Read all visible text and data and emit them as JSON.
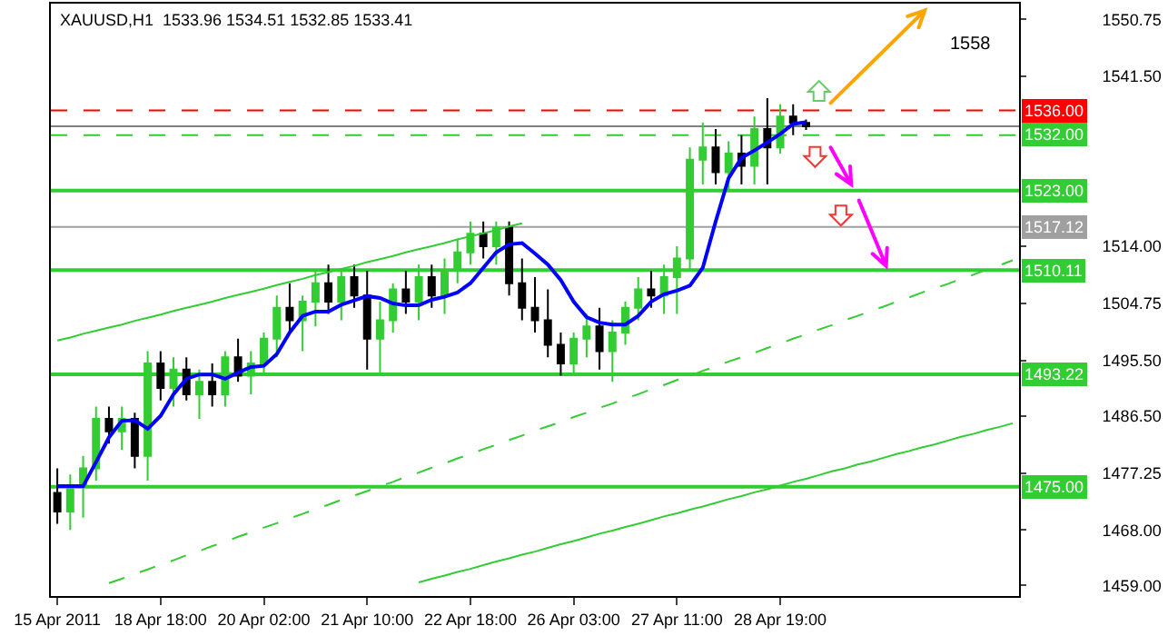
{
  "chart_data": {
    "type": "candlestick",
    "title": "XAUUSD,H1  1533.96 1534.51 1532.85 1533.41",
    "categories": [
      "15 Apr 2011",
      null,
      null,
      null,
      null,
      null,
      null,
      null,
      "18 Apr 18:00",
      null,
      null,
      null,
      null,
      null,
      null,
      null,
      "20 Apr 02:00",
      null,
      null,
      null,
      null,
      null,
      null,
      null,
      "21 Apr 10:00",
      null,
      null,
      null,
      null,
      null,
      null,
      null,
      "22 Apr 18:00",
      null,
      null,
      null,
      null,
      null,
      null,
      null,
      "26 Apr 03:00",
      null,
      null,
      null,
      null,
      null,
      null,
      null,
      "27 Apr 11:00",
      null,
      null,
      null,
      null,
      null,
      null,
      null,
      "28 Apr 19:00",
      null,
      null,
      null,
      null,
      null,
      null,
      null,
      null,
      null,
      null,
      null,
      null,
      null,
      null,
      null,
      null,
      null,
      null
    ],
    "ohlc": [
      [
        1474,
        1478,
        1469,
        1471
      ],
      [
        1471,
        1477,
        1468,
        1475
      ],
      [
        1475,
        1480,
        1470,
        1478
      ],
      [
        1478,
        1488,
        1476,
        1486
      ],
      [
        1486,
        1488,
        1482,
        1484
      ],
      [
        1484,
        1488,
        1481,
        1486
      ],
      [
        1486,
        1487,
        1478,
        1480
      ],
      [
        1480,
        1497,
        1476,
        1495
      ],
      [
        1495,
        1497,
        1489,
        1491
      ],
      [
        1491,
        1496,
        1488,
        1494
      ],
      [
        1494,
        1496,
        1489,
        1490
      ],
      [
        1490,
        1494,
        1486,
        1492
      ],
      [
        1492,
        1495,
        1488,
        1490
      ],
      [
        1490,
        1497,
        1488,
        1496
      ],
      [
        1496,
        1499,
        1492,
        1493
      ],
      [
        1493,
        1497,
        1490,
        1495
      ],
      [
        1495,
        1500,
        1493,
        1499
      ],
      [
        1499,
        1506,
        1496,
        1504
      ],
      [
        1504,
        1508,
        1500,
        1502
      ],
      [
        1502,
        1506,
        1497,
        1505
      ],
      [
        1505,
        1510,
        1501,
        1508
      ],
      [
        1508,
        1511,
        1503,
        1505
      ],
      [
        1505,
        1510,
        1502,
        1509
      ],
      [
        1509,
        1511,
        1504,
        1506
      ],
      [
        1506,
        1510,
        1494,
        1499
      ],
      [
        1499,
        1505,
        1493,
        1502
      ],
      [
        1502,
        1508,
        1500,
        1507
      ],
      [
        1507,
        1510,
        1503,
        1505
      ],
      [
        1505,
        1511,
        1502,
        1509
      ],
      [
        1509,
        1511,
        1504,
        1506
      ],
      [
        1506,
        1512,
        1503,
        1510
      ],
      [
        1510,
        1515,
        1508,
        1513
      ],
      [
        1513,
        1518,
        1511,
        1516
      ],
      [
        1516,
        1518,
        1512,
        1514
      ],
      [
        1514,
        1518,
        1511,
        1517
      ],
      [
        1517,
        1518,
        1506,
        1508
      ],
      [
        1508,
        1512,
        1502,
        1504
      ],
      [
        1504,
        1509,
        1500,
        1502
      ],
      [
        1502,
        1507,
        1496,
        1498
      ],
      [
        1498,
        1500,
        1493,
        1495
      ],
      [
        1495,
        1500,
        1493,
        1499
      ],
      [
        1499,
        1503,
        1496,
        1501
      ],
      [
        1501,
        1504,
        1494,
        1497
      ],
      [
        1497,
        1502,
        1492,
        1500
      ],
      [
        1500,
        1505,
        1498,
        1504
      ],
      [
        1504,
        1509,
        1502,
        1507
      ],
      [
        1507,
        1510,
        1504,
        1506
      ],
      [
        1506,
        1511,
        1503,
        1509
      ],
      [
        1509,
        1514,
        1503,
        1512
      ],
      [
        1512,
        1530,
        1510,
        1528
      ],
      [
        1528,
        1534,
        1524,
        1530
      ],
      [
        1530,
        1533,
        1524,
        1526
      ],
      [
        1526,
        1531,
        1523,
        1529
      ],
      [
        1529,
        1532,
        1524,
        1527
      ],
      [
        1527,
        1535,
        1524,
        1533
      ],
      [
        1533,
        1538,
        1524,
        1530
      ],
      [
        1530,
        1537,
        1529,
        1535
      ],
      [
        1535,
        1537,
        1532,
        1534
      ],
      [
        1533.96,
        1534.51,
        1532.85,
        1533.41
      ],
      null,
      null,
      null,
      null,
      null,
      null,
      null,
      null,
      null,
      null,
      null,
      null,
      null,
      null,
      null,
      null
    ],
    "colors": [
      "#000000",
      "#32cd32",
      "#32cd32",
      "#32cd32",
      "#000000",
      "#32cd32",
      "#000000",
      "#32cd32",
      "#000000",
      "#32cd32",
      "#000000",
      "#32cd32",
      "#000000",
      "#32cd32",
      "#000000",
      "#32cd32",
      "#32cd32",
      "#32cd32",
      "#000000",
      "#32cd32",
      "#32cd32",
      "#000000",
      "#32cd32",
      "#000000",
      "#000000",
      "#32cd32",
      "#32cd32",
      "#000000",
      "#32cd32",
      "#000000",
      "#32cd32",
      "#32cd32",
      "#32cd32",
      "#000000",
      "#32cd32",
      "#000000",
      "#000000",
      "#000000",
      "#000000",
      "#000000",
      "#32cd32",
      "#32cd32",
      "#000000",
      "#32cd32",
      "#32cd32",
      "#32cd32",
      "#000000",
      "#32cd32",
      "#32cd32",
      "#32cd32",
      "#32cd32",
      "#000000",
      "#32cd32",
      "#000000",
      "#32cd32",
      "#000000",
      "#32cd32",
      "#000000",
      "#000000",
      null,
      null,
      null,
      null,
      null,
      null,
      null,
      null,
      null,
      null,
      null,
      null,
      null,
      null,
      null,
      null
    ],
    "series": [
      {
        "type": "line",
        "color": "#0000ff",
        "values": [
          1475.1,
          1475.1,
          1475.1,
          1479,
          1483,
          1485.7,
          1485.8,
          1484.4,
          1486.5,
          1490,
          1492.5,
          1493.2,
          1493.2,
          1492.5,
          1493.5,
          1494.4,
          1494.6,
          1496.5,
          1500,
          1502.7,
          1503.4,
          1503.4,
          1504.5,
          1505.2,
          1505.9,
          1505.6,
          1504.7,
          1504.4,
          1504.4,
          1505.3,
          1505.8,
          1506.5,
          1508,
          1510.5,
          1513,
          1514.3,
          1514.5,
          1512.8,
          1511,
          1508.5,
          1505,
          1502.5,
          1501.6,
          1501.3,
          1501.3,
          1502.7,
          1505,
          1506.2,
          1506.8,
          1507.6,
          1510.5,
          1518,
          1525,
          1528.3,
          1529.5,
          1530.8,
          1532.2,
          1533.8,
          1534.1,
          null,
          null,
          null,
          null,
          null,
          null,
          null,
          null,
          null,
          null,
          null,
          null,
          null,
          null,
          null,
          null
        ]
      },
      {
        "type": "line",
        "color": "#32cd32",
        "values": [
          1498.7,
          1499.2,
          1499.8,
          1500.3,
          1500.8,
          1501.3,
          1501.9,
          1502.4,
          1502.9,
          1503.5,
          1504.0,
          1504.5,
          1505.0,
          1505.6,
          1506.1,
          1506.6,
          1507.1,
          1507.7,
          1508.2,
          1508.7,
          1509.3,
          1509.8,
          1510.3,
          1510.8,
          1511.4,
          1511.9,
          1512.4,
          1513.0,
          1513.5,
          1514.0,
          1514.5,
          1515.1,
          1515.6,
          1516.1,
          1516.6,
          1517.2,
          1517.7,
          null,
          null,
          null,
          null,
          null,
          null,
          null,
          null,
          null,
          null,
          null,
          null,
          null,
          null,
          null,
          null,
          null,
          null,
          null,
          null,
          null,
          null,
          null,
          null,
          null,
          null,
          null,
          null,
          null,
          null,
          null,
          null,
          null,
          null,
          null,
          null,
          null,
          null
        ]
      },
      {
        "type": "line",
        "color": "#32cd32",
        "line_style": "dashed",
        "values": [
          null,
          null,
          null,
          null,
          1459.4,
          1460.1,
          1460.9,
          1461.6,
          1462.4,
          1463.1,
          1463.9,
          1464.6,
          1465.4,
          1466.1,
          1466.9,
          1467.6,
          1468.4,
          1469.1,
          1469.9,
          1470.6,
          1471.4,
          1472.1,
          1472.9,
          1473.6,
          1474.3,
          1475.1,
          1475.8,
          1476.6,
          1477.3,
          1478.1,
          1478.8,
          1479.6,
          1480.3,
          1481.1,
          1481.8,
          1482.6,
          1483.3,
          1484.1,
          1484.8,
          1485.5,
          1486.3,
          1487.0,
          1487.8,
          1488.5,
          1489.3,
          1490.0,
          1490.8,
          1491.5,
          1492.3,
          1493.0,
          1493.8,
          1494.5,
          1495.3,
          1496.0,
          1496.7,
          1497.5,
          1498.2,
          1499.0,
          1499.7,
          1500.5,
          1501.2,
          1502.0,
          1502.7,
          1503.5,
          1504.2,
          1505.0,
          1505.7,
          1506.5,
          1507.2,
          1507.9,
          1508.7,
          1509.4,
          1510.2,
          1510.9,
          1511.7
        ]
      },
      {
        "type": "line",
        "color": "#32cd32",
        "values": [
          null,
          null,
          null,
          null,
          null,
          null,
          null,
          null,
          null,
          null,
          null,
          null,
          null,
          null,
          null,
          null,
          null,
          null,
          null,
          null,
          null,
          null,
          null,
          null,
          null,
          null,
          null,
          null,
          1459.5,
          1460.1,
          1460.6,
          1461.2,
          1461.7,
          1462.3,
          1462.9,
          1463.4,
          1464.0,
          1464.5,
          1465.1,
          1465.7,
          1466.2,
          1466.8,
          1467.4,
          1467.9,
          1468.5,
          1469.0,
          1469.6,
          1470.2,
          1470.7,
          1471.3,
          1471.8,
          1472.4,
          1473.0,
          1473.5,
          1474.1,
          1474.6,
          1475.2,
          1475.8,
          1476.3,
          1476.9,
          1477.5,
          1478.0,
          1478.6,
          1479.1,
          1479.7,
          1480.3,
          1480.8,
          1481.4,
          1481.9,
          1482.5,
          1483.1,
          1483.6,
          1484.2,
          1484.7,
          1485.3
        ]
      }
    ],
    "ref_lines": [
      {
        "axis": "y",
        "value": 1536,
        "label": "1536.00",
        "color": "#ff0000",
        "line_style": "dashed"
      },
      {
        "axis": "y",
        "value": 1533.41,
        "label": null,
        "color": "#808080",
        "line_style": "solid"
      },
      {
        "axis": "y",
        "value": 1532,
        "label": "1532.00",
        "color": "#32cd32",
        "line_style": "dashed"
      },
      {
        "axis": "y",
        "value": 1523,
        "label": "1523.00",
        "color": "#32cd32",
        "line_style": "solid"
      },
      {
        "axis": "y",
        "value": 1517.12,
        "label": "1517.12",
        "color": "#a0a0a0",
        "line_style": "solid"
      },
      {
        "axis": "y",
        "value": 1510.11,
        "label": "1510.11",
        "color": "#32cd32",
        "line_style": "solid"
      },
      {
        "axis": "y",
        "value": 1493.22,
        "label": "1493.22",
        "color": "#32cd32",
        "line_style": "solid"
      },
      {
        "axis": "y",
        "value": 1475,
        "label": "1475.00",
        "color": "#32cd32",
        "line_style": "solid"
      }
    ],
    "annotations": [
      "1558"
    ],
    "ylim": [
      1457.3,
      1553.3
    ],
    "yticks": [
      {
        "value": 1459,
        "label": "1459.00"
      },
      {
        "value": 1468,
        "label": "1468.00"
      },
      {
        "value": 1477.25,
        "label": "1477.25"
      },
      {
        "value": 1486.5,
        "label": "1486.50"
      },
      {
        "value": 1495.5,
        "label": "1495.50"
      },
      {
        "value": 1504.75,
        "label": "1504.75"
      },
      {
        "value": 1514,
        "label": "1514.00"
      },
      {
        "value": 1541.5,
        "label": "1541.50"
      },
      {
        "value": 1550.75,
        "label": "1550.75"
      }
    ]
  }
}
